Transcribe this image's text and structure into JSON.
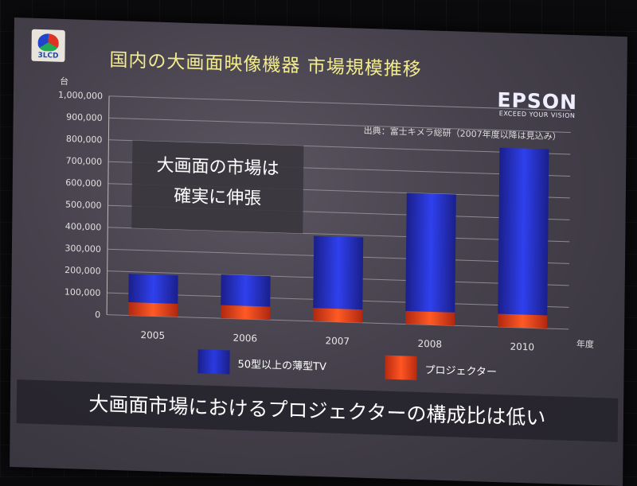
{
  "slide": {
    "title": "国内の大画面映像機器 市場規模推移",
    "brand": "EPSON",
    "brand_tagline": "EXCEED YOUR VISION",
    "logo_text": "3LCD",
    "source": "出典：富士キメラ総研（2007年度以降は見込み）",
    "callout_line1": "大画面の市場は",
    "callout_line2": "確実に伸張",
    "bottom_message": "大画面市場におけるプロジェクターの構成比は低い"
  },
  "chart_data": {
    "type": "bar",
    "stacked": true,
    "categories": [
      "2005",
      "2006",
      "2007",
      "2008",
      "2010"
    ],
    "xlabel": "年度",
    "ylabel": "台",
    "ylim": [
      0,
      1000000
    ],
    "yticks": [
      "1,000,000",
      "900,000",
      "800,000",
      "700,000",
      "600,000",
      "500,000",
      "400,000",
      "300,000",
      "200,000",
      "100,000",
      "0"
    ],
    "grid": true,
    "series": [
      {
        "name": "プロジェクター",
        "color": "#e8401c",
        "values": [
          60000,
          60000,
          60000,
          60000,
          60000
        ]
      },
      {
        "name": "50型以上の薄型TV",
        "color": "#2233d0",
        "values": [
          130000,
          140000,
          330000,
          540000,
          760000
        ]
      }
    ],
    "legend_position": "bottom"
  }
}
